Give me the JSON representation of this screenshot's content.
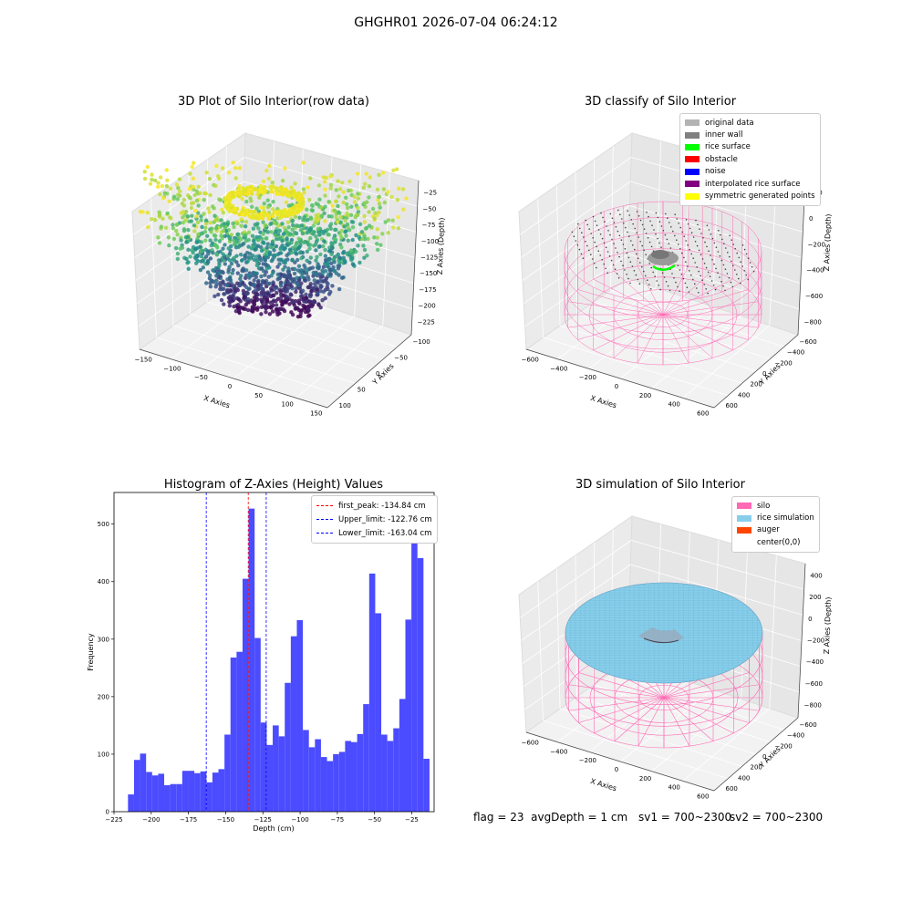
{
  "suptitle": "GHGHR01 2026-07-04 06:24:12",
  "panels": {
    "raw": {
      "title": "3D Plot of Silo Interior(row data)",
      "xlabel": "X Axies",
      "ylabel": "Y Axies",
      "zlabel": "Z Axies (Depth)",
      "xticks": [
        "−150",
        "−100",
        "−50",
        "0",
        "50",
        "100",
        "150"
      ],
      "yticks": [
        "−100",
        "−50",
        "0",
        "50",
        "100"
      ],
      "zticks": [
        "−25",
        "−50",
        "−75",
        "−100",
        "−125",
        "−150",
        "−175",
        "−200",
        "−225"
      ]
    },
    "classify": {
      "title": "3D classify of Silo Interior",
      "xlabel": "X Axies",
      "ylabel": "Y Axies",
      "zlabel": "Z Axies (Depth)",
      "xticks": [
        "−600",
        "−400",
        "−200",
        "0",
        "200",
        "400",
        "600"
      ],
      "yticks": [
        "−600",
        "−400",
        "−200",
        "0",
        "200",
        "400",
        "600"
      ],
      "zticks": [
        "200",
        "0",
        "−200",
        "−400",
        "−600",
        "−800"
      ],
      "legend": [
        {
          "label": "original data",
          "color": "#b3b3b3"
        },
        {
          "label": "inner wall",
          "color": "#808080"
        },
        {
          "label": "rice surface",
          "color": "#00ff00"
        },
        {
          "label": "obstacle",
          "color": "#ff0000"
        },
        {
          "label": "noise",
          "color": "#0000ff"
        },
        {
          "label": "interpolated rice surface",
          "color": "#800080"
        },
        {
          "label": "symmetric generated points",
          "color": "#ffff00"
        }
      ]
    },
    "simulation": {
      "title": "3D simulation of Silo Interior",
      "xlabel": "X Axies",
      "ylabel": "Y Axies",
      "zlabel": "Z Axies (Depth)",
      "xticks": [
        "−600",
        "−400",
        "−200",
        "0",
        "200",
        "400",
        "600"
      ],
      "yticks": [
        "−600",
        "−400",
        "−200",
        "0",
        "200",
        "400",
        "600"
      ],
      "zticks": [
        "400",
        "200",
        "0",
        "−200",
        "−400",
        "−600",
        "−800"
      ],
      "legend": [
        {
          "label": "silo",
          "color": "#ff69b4"
        },
        {
          "label": "rice simulation",
          "color": "#87ceeb"
        },
        {
          "label": "auger",
          "color": "#ff4500"
        },
        {
          "label": "center(0,0)",
          "color": "#ffffff"
        }
      ]
    }
  },
  "chart_data": {
    "type": "bar",
    "title": "Histogram of Z-Axies (Height) Values",
    "xlabel": "Depth (cm)",
    "ylabel": "Frequency",
    "xlim": [
      -225,
      -10
    ],
    "ylim": [
      0,
      555
    ],
    "xticks": [
      -225,
      -200,
      -175,
      -150,
      -125,
      -100,
      -75,
      -50,
      -25
    ],
    "xtick_labels": [
      "−225",
      "−200",
      "−175",
      "−150",
      "−125",
      "−100",
      "−75",
      "−50",
      "−25"
    ],
    "yticks": [
      0,
      100,
      200,
      300,
      400,
      500
    ],
    "bin_start": -215.6,
    "bin_width": 4.05,
    "bar_color": "#4b4bff",
    "values": [
      30,
      90,
      101,
      69,
      63,
      66,
      46,
      48,
      48,
      71,
      71,
      67,
      70,
      51,
      68,
      74,
      134,
      268,
      278,
      405,
      527,
      302,
      155,
      116,
      150,
      131,
      224,
      305,
      333,
      142,
      112,
      126,
      95,
      88,
      100,
      104,
      123,
      121,
      135,
      187,
      414,
      345,
      134,
      123,
      145,
      196,
      334,
      519,
      441,
      92
    ],
    "reference_lines": [
      {
        "label": "first_peak: -134.84 cm",
        "x": -134.84,
        "color": "#ff0000"
      },
      {
        "label": "Upper_limit: -122.76 cm",
        "x": -122.76,
        "color": "#0000ff"
      },
      {
        "label": "Lower_limit: -163.04 cm",
        "x": -163.04,
        "color": "#0000ff"
      }
    ]
  },
  "footer": {
    "flag_text": "flag = 23  avgDepth = 1 cm",
    "sv1": "sv1 = 700~2300",
    "sv2": "sv2 = 700~2300"
  }
}
